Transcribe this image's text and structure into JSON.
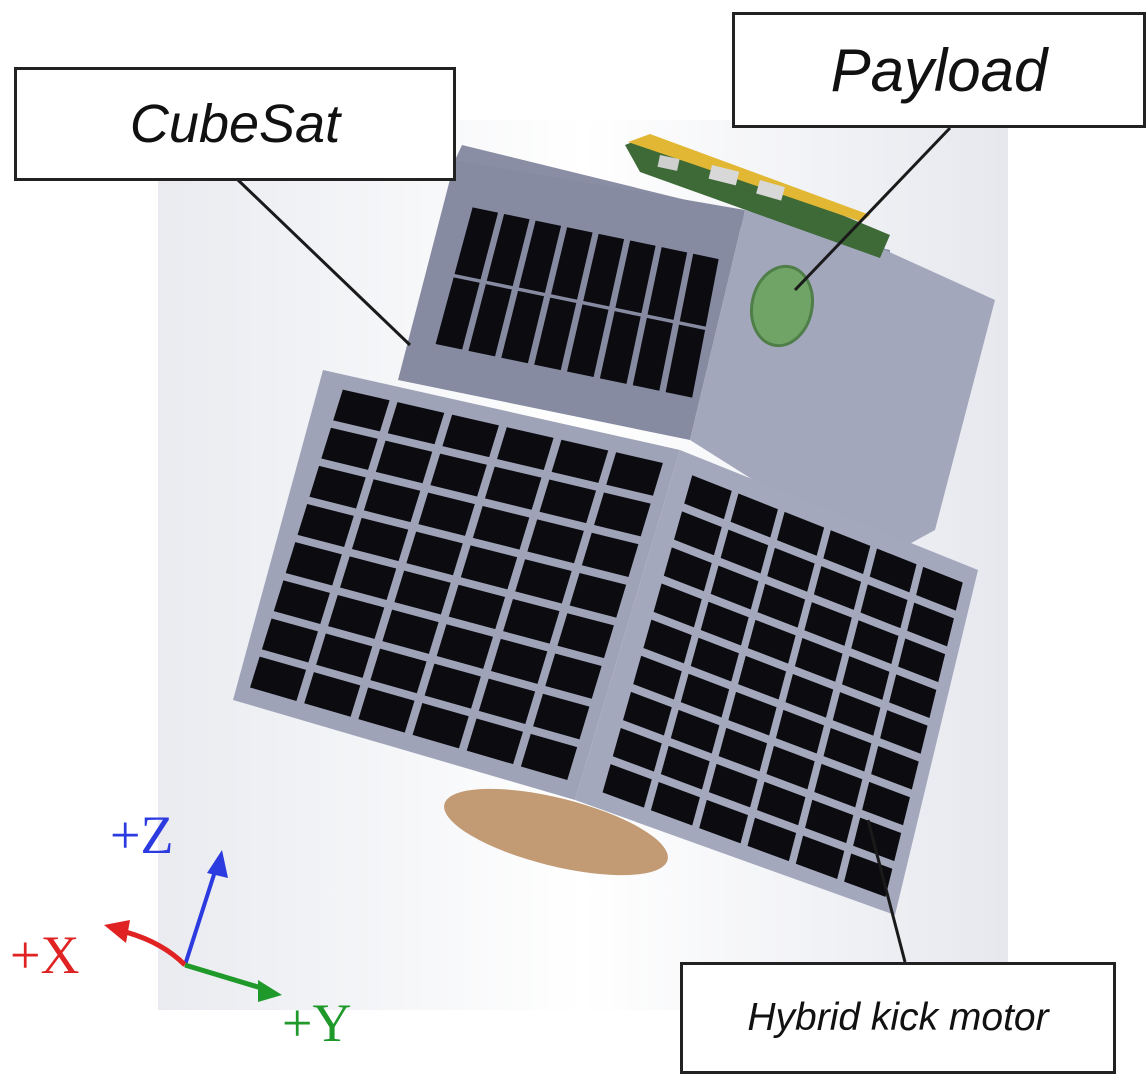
{
  "labels": {
    "cubesat": "CubeSat",
    "payload": "Payload",
    "hybrid_kick_motor": "Hybrid kick motor"
  },
  "axes": {
    "z": "+Z",
    "x": "+X",
    "y": "+Y"
  },
  "colors": {
    "frame": "#9fa3b8",
    "frame_dark": "#7e8296",
    "solar_cell": "#0b0b10",
    "payload_lens": "#6fa466",
    "motor_nozzle": "#c29a74",
    "pcb": "#3e6a37",
    "pcb_edge": "#e2b733",
    "axis_z": "#2b3be0",
    "axis_x": "#e02222",
    "axis_y": "#1f9a2a"
  }
}
